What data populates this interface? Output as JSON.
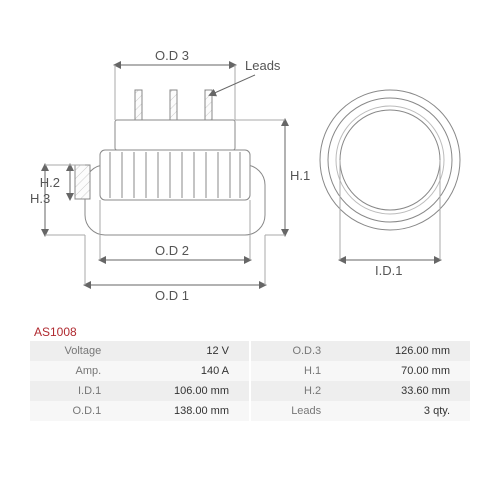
{
  "part_number": "AS1008",
  "diagram": {
    "line_color": "#888888",
    "line_width": 1,
    "dim_color": "#777777",
    "hatch_light": "#f1f1f1",
    "label_font_size": 13,
    "labels": {
      "od3": "O.D 3",
      "od2": "O.D 2",
      "od1": "O.D 1",
      "h1": "H.1",
      "h2": "H.2",
      "h3": "H.3",
      "leads": "Leads",
      "id1": "I.D.1"
    }
  },
  "specs": {
    "rows": [
      {
        "l1": "Voltage",
        "v1": "12 V",
        "l2": "O.D.3",
        "v2": "126.00 mm"
      },
      {
        "l1": "Amp.",
        "v1": "140 A",
        "l2": "H.1",
        "v2": "70.00 mm"
      },
      {
        "l1": "I.D.1",
        "v1": "106.00 mm",
        "l2": "H.2",
        "v2": "33.60 mm"
      },
      {
        "l1": "O.D.1",
        "v1": "138.00 mm",
        "l2": "Leads",
        "v2": "3 qty."
      }
    ]
  }
}
